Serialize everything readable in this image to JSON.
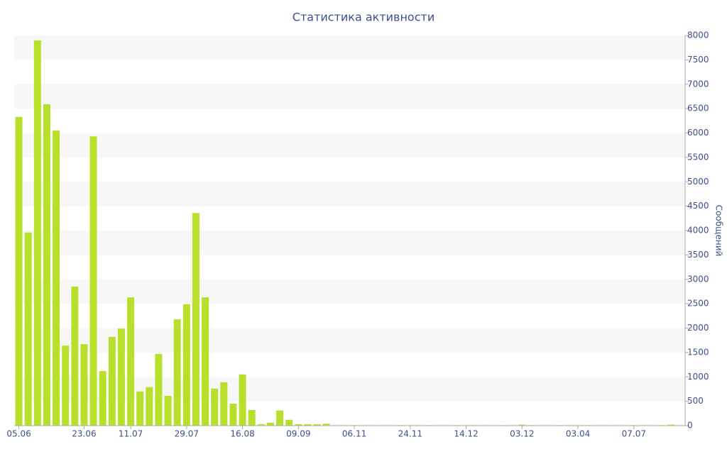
{
  "chart_data": {
    "type": "bar",
    "title": "Статистика активности",
    "y_label": "Сообщений",
    "categories": [
      "05.06",
      null,
      null,
      null,
      null,
      null,
      null,
      "23.06",
      null,
      null,
      null,
      null,
      "11.07",
      null,
      null,
      null,
      null,
      null,
      "29.07",
      null,
      null,
      null,
      null,
      null,
      "16.08",
      null,
      null,
      null,
      null,
      null,
      "09.09",
      null,
      null,
      null,
      null,
      null,
      "06.11",
      null,
      null,
      null,
      null,
      null,
      "24.11",
      null,
      null,
      null,
      null,
      null,
      "14.12",
      null,
      null,
      null,
      null,
      null,
      "03.12",
      null,
      null,
      null,
      null,
      null,
      "03.04",
      null,
      null,
      null,
      null,
      null,
      "07.07",
      null,
      null,
      null,
      null,
      null
    ],
    "values": [
      6330,
      3960,
      7900,
      6590,
      6050,
      1640,
      2850,
      1670,
      5930,
      1120,
      1820,
      1990,
      2630,
      700,
      790,
      1470,
      610,
      2180,
      2490,
      4360,
      2630,
      760,
      890,
      450,
      1050,
      320,
      30,
      60,
      310,
      120,
      30,
      30,
      30,
      40,
      10,
      10,
      10,
      10,
      10,
      10,
      10,
      10,
      10,
      10,
      10,
      10,
      10,
      10,
      10,
      10,
      10,
      10,
      10,
      10,
      20,
      10,
      10,
      10,
      10,
      10,
      10,
      10,
      10,
      10,
      10,
      10,
      10,
      10,
      10,
      10,
      20,
      10
    ],
    "color": "#b8e02a",
    "ylim": [
      0,
      8000
    ],
    "yticks": [
      0,
      500,
      1000,
      1500,
      2000,
      2500,
      3000,
      3500,
      4000,
      4500,
      5000,
      5500,
      6000,
      6500,
      7000,
      7500,
      8000
    ],
    "grid": true
  }
}
